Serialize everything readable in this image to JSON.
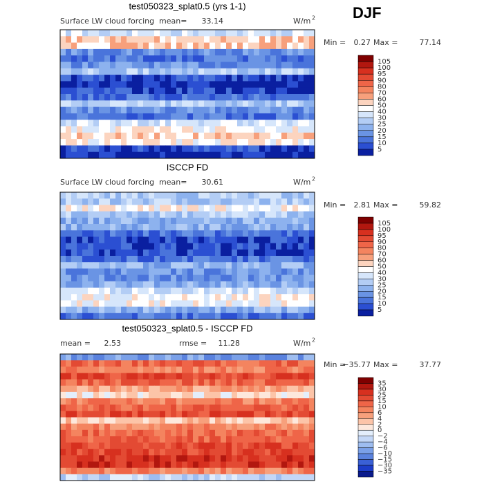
{
  "header": {
    "season": "DJF"
  },
  "panels": [
    {
      "title": "test050323_splat0.5 (yrs 1-1)",
      "variable": "Surface LW cloud forcing",
      "stats": [
        {
          "label": "mean=",
          "value": "33.14"
        }
      ],
      "units": "W/m",
      "units_exp": "2",
      "min_label": "Min =",
      "min": "0.27",
      "max_label": "Max =",
      "max": "77.14",
      "colorbar": {
        "labels": [
          "105",
          "100",
          "95",
          "90",
          "80",
          "70",
          "60",
          "50",
          "40",
          "30",
          "25",
          "20",
          "15",
          "10",
          "5"
        ],
        "colors": [
          "#7f0000",
          "#b2170f",
          "#d7301f",
          "#e34a33",
          "#ef6548",
          "#f4845f",
          "#f7a07c",
          "#fcd4bf",
          "#ffffff",
          "#d6e6fb",
          "#b3cdf5",
          "#8db2ee",
          "#6a94e4",
          "#4a74db",
          "#2b4fd2",
          "#0a1fa0"
        ]
      }
    },
    {
      "title": "ISCCP FD",
      "variable": "Surface LW cloud forcing",
      "stats": [
        {
          "label": "mean=",
          "value": "30.61"
        }
      ],
      "units": "W/m",
      "units_exp": "2",
      "min_label": "Min =",
      "min": "2.81",
      "max_label": "Max =",
      "max": "59.82",
      "colorbar": {
        "labels": [
          "105",
          "100",
          "95",
          "90",
          "80",
          "70",
          "60",
          "50",
          "40",
          "30",
          "25",
          "20",
          "15",
          "10",
          "5"
        ],
        "colors": [
          "#7f0000",
          "#b2170f",
          "#d7301f",
          "#e34a33",
          "#ef6548",
          "#f4845f",
          "#f7a07c",
          "#fcd4bf",
          "#ffffff",
          "#d6e6fb",
          "#b3cdf5",
          "#8db2ee",
          "#6a94e4",
          "#4a74db",
          "#2b4fd2",
          "#0a1fa0"
        ]
      }
    },
    {
      "title": "test050323_splat0.5 - ISCCP FD",
      "stats": [
        {
          "label": "mean =",
          "value": "2.53"
        },
        {
          "label": "rmse =",
          "value": "11.28"
        }
      ],
      "units": "W/m",
      "units_exp": "2",
      "min_label": "Min =",
      "min": "−35.77",
      "max_label": "Max =",
      "max": "37.77",
      "colorbar": {
        "labels": [
          "35",
          "30",
          "25",
          "15",
          "10",
          "6",
          "4",
          "2",
          "0",
          "−2",
          "−4",
          "−6",
          "−10",
          "−15",
          "−30",
          "−35"
        ],
        "colors": [
          "#7f0000",
          "#b2170f",
          "#d7301f",
          "#e34a33",
          "#ef6548",
          "#f4845f",
          "#f7a07c",
          "#fcc4a8",
          "#fde8dc",
          "#e3eefc",
          "#c3d7f7",
          "#9ebdf0",
          "#7aa0e8",
          "#5a82de",
          "#3a60d6",
          "#1c3cc8",
          "#0a1a8c"
        ]
      }
    }
  ]
}
